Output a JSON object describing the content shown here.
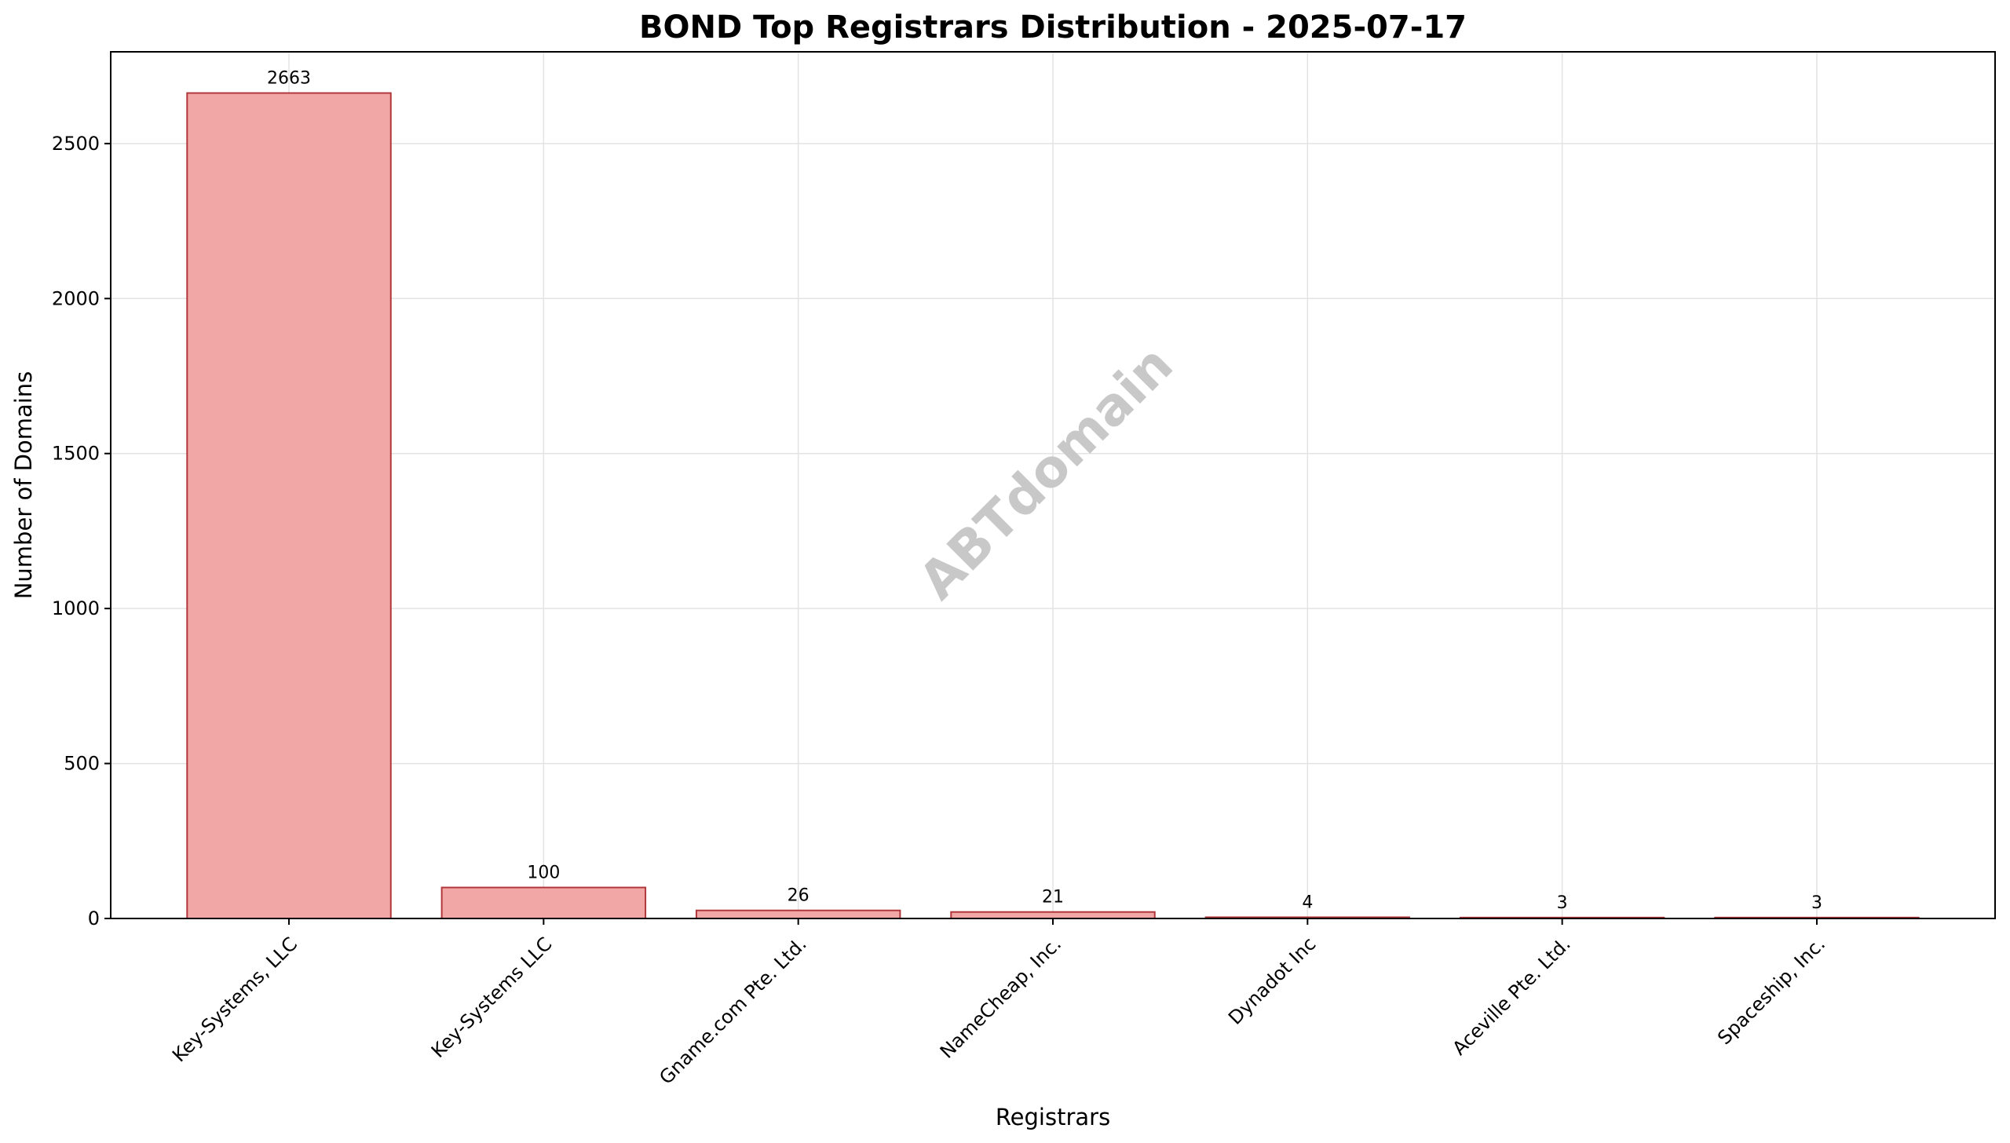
{
  "chart_data": {
    "type": "bar",
    "title": "BOND Top Registrars Distribution - 2025-07-17",
    "xlabel": "Registrars",
    "ylabel": "Number of Domains",
    "categories": [
      "Key-Systems, LLC",
      "Key-Systems LLC",
      "Gname.com Pte. Ltd.",
      "NameCheap, Inc.",
      "Dynadot Inc",
      "Aceville Pte. Ltd.",
      "Spaceship, Inc."
    ],
    "values": [
      2663,
      100,
      26,
      21,
      4,
      3,
      3
    ],
    "ylim": [
      0,
      2796
    ],
    "yticks": [
      0,
      500,
      1000,
      1500,
      2000,
      2500
    ],
    "grid": true,
    "watermark": "ABTdomain",
    "colors": {
      "bar_fill": "#f2a7a7",
      "bar_edge": "#b0383c",
      "grid": "#e3e3e3",
      "watermark": "#c8c8c8"
    }
  }
}
